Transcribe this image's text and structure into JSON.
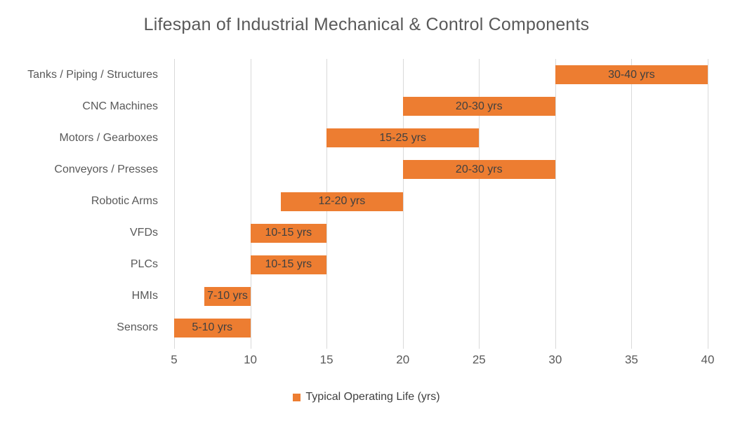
{
  "chart_data": {
    "type": "bar",
    "orientation": "horizontal",
    "title": "Lifespan of Industrial Mechanical & Control Components",
    "categories": [
      "Tanks / Piping / Structures",
      "CNC Machines",
      "Motors / Gearboxes",
      "Conveyors / Presses",
      "Robotic Arms",
      "VFDs",
      "PLCs",
      "HMIs",
      "Sensors"
    ],
    "series": [
      {
        "name": "Typical Operating Life (yrs)",
        "ranges": [
          [
            30,
            40
          ],
          [
            20,
            30
          ],
          [
            15,
            25
          ],
          [
            20,
            30
          ],
          [
            12,
            20
          ],
          [
            10,
            15
          ],
          [
            10,
            15
          ],
          [
            7,
            10
          ],
          [
            5,
            10
          ]
        ],
        "data_labels": [
          "30-40 yrs",
          "20-30 yrs",
          "15-25 yrs",
          "20-30 yrs",
          "12-20 yrs",
          "10-15 yrs",
          "10-15 yrs",
          "7-10 yrs",
          "5-10 yrs"
        ]
      }
    ],
    "xlabel": "",
    "ylabel": "",
    "xlim": [
      5,
      40
    ],
    "xticks": [
      "5",
      "10",
      "15",
      "20",
      "25",
      "30",
      "35",
      "40"
    ],
    "grid": true,
    "legend_position": "bottom",
    "legend": {
      "label": "Typical Operating Life (yrs)"
    },
    "colors": {
      "bar": "#ED7D31",
      "gridline": "#D9D9D9",
      "title": "#595959",
      "axis_text": "#595959",
      "data_label": "#404040"
    }
  }
}
